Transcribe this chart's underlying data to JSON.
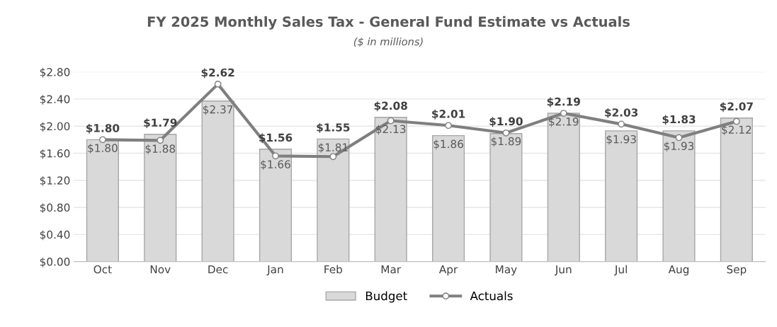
{
  "chart_data": {
    "type": "bar",
    "title": "FY 2025 Monthly Sales Tax - General Fund Estimate vs Actuals",
    "subtitle": "($ in millions)",
    "categories": [
      "Oct",
      "Nov",
      "Dec",
      "Jan",
      "Feb",
      "Mar",
      "Apr",
      "May",
      "Jun",
      "Jul",
      "Aug",
      "Sep"
    ],
    "series": [
      {
        "name": "Budget",
        "color": "#d9d9d9",
        "values": [
          1.8,
          1.88,
          2.37,
          1.66,
          1.81,
          2.13,
          1.86,
          1.89,
          2.19,
          1.93,
          1.93,
          2.12
        ],
        "value_labels": [
          "$1.80",
          "$1.88",
          "$2.37",
          "$1.66",
          "$1.81",
          "$2.13",
          "$1.86",
          "$1.89",
          "$2.19",
          "$1.93",
          "$1.93",
          "$2.12"
        ]
      },
      {
        "name": "Actuals",
        "type": "line",
        "color": "#7f7f7f",
        "marker": "circle",
        "values": [
          1.8,
          1.79,
          2.62,
          1.56,
          1.55,
          2.08,
          2.01,
          1.9,
          2.19,
          2.03,
          1.83,
          2.07
        ],
        "value_labels": [
          "$1.80",
          "$1.79",
          "$2.62",
          "$1.56",
          "$1.55",
          "$2.08",
          "$2.01",
          "$1.90",
          "$2.19",
          "$2.03",
          "$1.83",
          "$2.07"
        ]
      }
    ],
    "ylim": [
      0,
      2.8
    ],
    "yticks": [
      {
        "value": 0,
        "label": "$0.00"
      },
      {
        "value": 0.4,
        "label": "$0.40"
      },
      {
        "value": 0.8,
        "label": "$0.80"
      },
      {
        "value": 1.2,
        "label": "$1.20"
      },
      {
        "value": 1.6,
        "label": "$1.60"
      },
      {
        "value": 2.0,
        "label": "$2.00"
      },
      {
        "value": 2.4,
        "label": "$2.40"
      },
      {
        "value": 2.8,
        "label": "$2.80"
      }
    ],
    "grid": "y",
    "legend": "bottom"
  }
}
